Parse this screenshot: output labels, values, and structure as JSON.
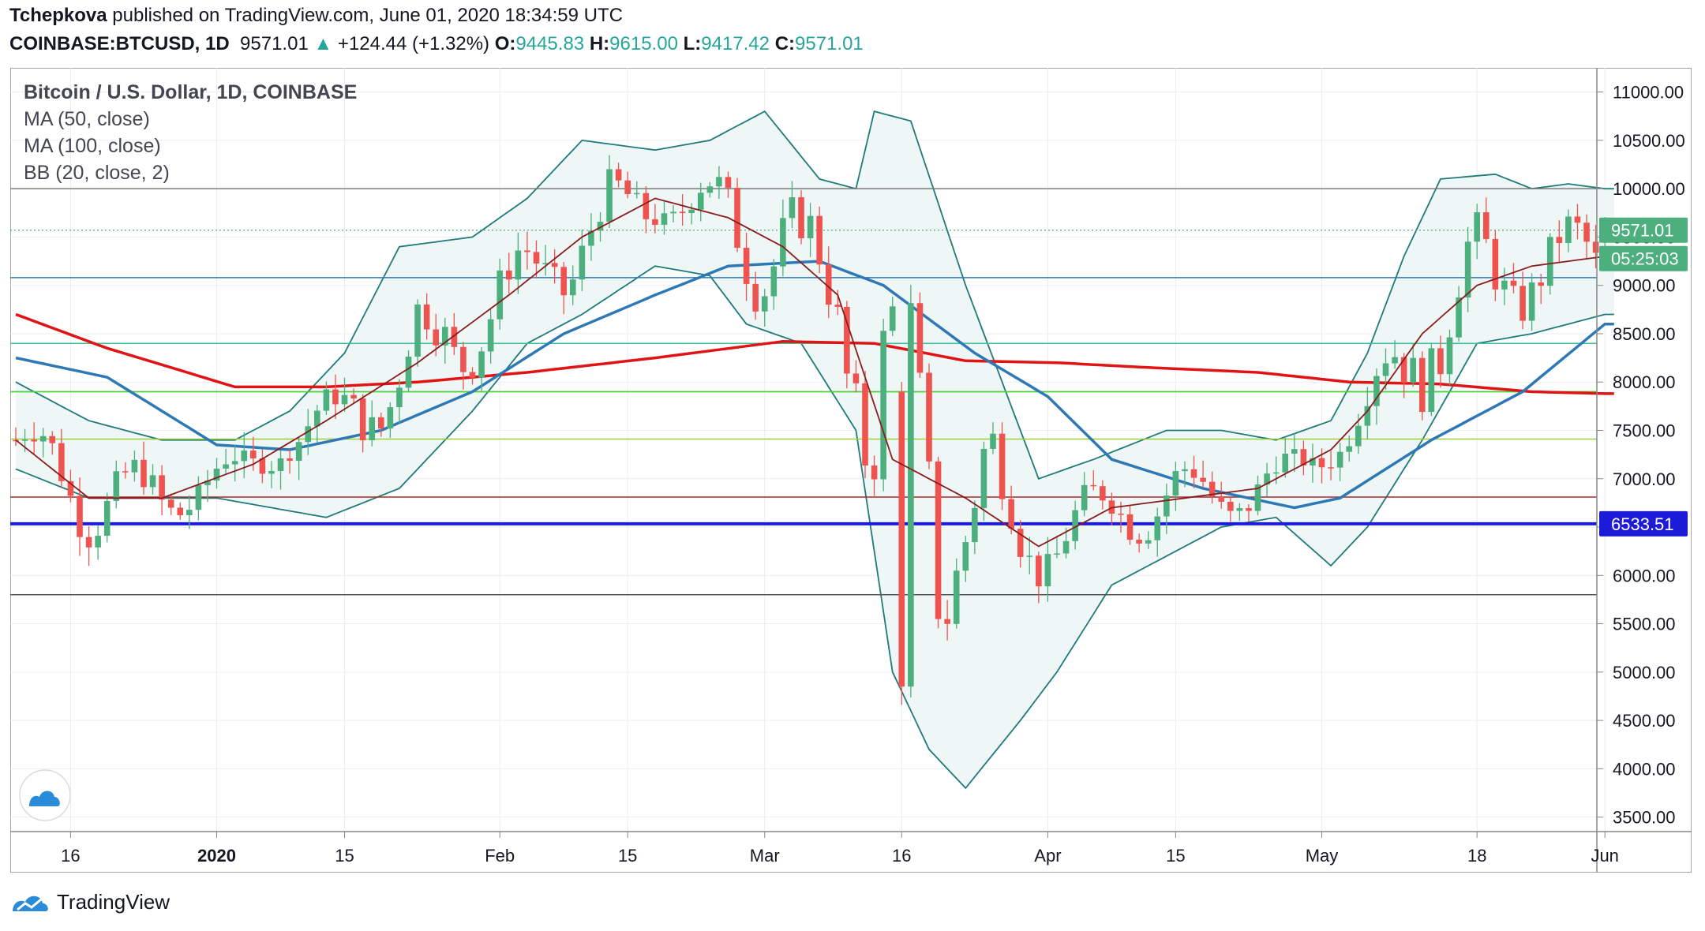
{
  "header": {
    "author": "Tchepkova",
    "published": "published on TradingView.com, June 01, 2020 18:34:59 UTC",
    "symbol": "COINBASE:BTCUSD, 1D",
    "last": "9571.01",
    "arrow": "▲",
    "change": "+124.44 (+1.32%)",
    "o_label": "O:",
    "o_value": "9445.83",
    "h_label": "H:",
    "h_value": "9615.00",
    "l_label": "L:",
    "l_value": "9417.42",
    "c_label": "C:",
    "c_value": "9571.01"
  },
  "legend": {
    "title": "Bitcoin / U.S. Dollar, 1D, COINBASE",
    "ma50": "MA (50, close)",
    "ma100": "MA (100, close)",
    "bb": "BB (20, close, 2)"
  },
  "footer": {
    "brand": "TradingView"
  },
  "colors": {
    "up": "#4caf7d",
    "down": "#ef5350",
    "ma50": "#2e79b5",
    "ma100": "#e01414",
    "bb_mid": "#8b1c1c",
    "bb_band": "#1f7a7a",
    "bb_fill": "#eef6f6",
    "blue_line": "#1c1cd8",
    "price_badge": "#4caf7d",
    "support_badge": "#1c1cd8"
  },
  "chart_data": {
    "type": "candlestick",
    "title": "Bitcoin / U.S. Dollar, 1D, COINBASE",
    "ylim": [
      3350,
      11250
    ],
    "y_ticks": [
      "11000.00",
      "10500.00",
      "10000.00",
      "9500.00",
      "9000.00",
      "8500.00",
      "8000.00",
      "7500.00",
      "7000.00",
      "6500.00",
      "6000.00",
      "5500.00",
      "5000.00",
      "4500.00",
      "4000.00",
      "3500.00"
    ],
    "x_ticks": [
      {
        "label": "16",
        "day": 6
      },
      {
        "label": "2020",
        "day": 22
      },
      {
        "label": "15",
        "day": 36
      },
      {
        "label": "Feb",
        "day": 53
      },
      {
        "label": "15",
        "day": 67
      },
      {
        "label": "Mar",
        "day": 82
      },
      {
        "label": "16",
        "day": 97
      },
      {
        "label": "Apr",
        "day": 113
      },
      {
        "label": "15",
        "day": 127
      },
      {
        "label": "May",
        "day": 143
      },
      {
        "label": "18",
        "day": 160
      },
      {
        "label": "Jun",
        "day": 174
      }
    ],
    "last_price_label": "9571.01",
    "countdown_label": "05:25:03",
    "support_label": "6533.51",
    "horizontal_levels": [
      {
        "value": 10000,
        "color": "#7a7a7a",
        "width": 1.5
      },
      {
        "value": 9080,
        "color": "#2e79b5",
        "width": 1.5
      },
      {
        "value": 8400,
        "color": "#3bbf9a",
        "width": 1.5
      },
      {
        "value": 7900,
        "color": "#4ccf3a",
        "width": 1.8
      },
      {
        "value": 7410,
        "color": "#9ad03a",
        "width": 1.5
      },
      {
        "value": 6810,
        "color": "#a52a2a",
        "width": 1.5
      },
      {
        "value": 6533.51,
        "color": "#1c1cd8",
        "width": 4
      },
      {
        "value": 5800,
        "color": "#555555",
        "width": 1.5
      }
    ],
    "key_points": {
      "ma50": [
        [
          0,
          8250
        ],
        [
          10,
          8050
        ],
        [
          22,
          7350
        ],
        [
          30,
          7300
        ],
        [
          40,
          7500
        ],
        [
          50,
          7900
        ],
        [
          60,
          8500
        ],
        [
          70,
          8900
        ],
        [
          78,
          9200
        ],
        [
          88,
          9250
        ],
        [
          95,
          9000
        ],
        [
          105,
          8300
        ],
        [
          113,
          7850
        ],
        [
          120,
          7200
        ],
        [
          130,
          6900
        ],
        [
          140,
          6700
        ],
        [
          145,
          6800
        ],
        [
          155,
          7400
        ],
        [
          165,
          7900
        ],
        [
          174,
          8600
        ]
      ],
      "ma100": [
        [
          0,
          8700
        ],
        [
          10,
          8350
        ],
        [
          24,
          7950
        ],
        [
          34,
          7950
        ],
        [
          44,
          8000
        ],
        [
          56,
          8100
        ],
        [
          70,
          8250
        ],
        [
          84,
          8420
        ],
        [
          94,
          8400
        ],
        [
          104,
          8220
        ],
        [
          114,
          8200
        ],
        [
          124,
          8150
        ],
        [
          136,
          8100
        ],
        [
          146,
          8000
        ],
        [
          156,
          7980
        ],
        [
          166,
          7900
        ],
        [
          174,
          7880
        ]
      ],
      "bb_mid": [
        [
          0,
          7400
        ],
        [
          8,
          6800
        ],
        [
          16,
          6800
        ],
        [
          26,
          7150
        ],
        [
          34,
          7600
        ],
        [
          44,
          8200
        ],
        [
          54,
          8900
        ],
        [
          62,
          9500
        ],
        [
          70,
          9900
        ],
        [
          78,
          9700
        ],
        [
          84,
          9400
        ],
        [
          90,
          8900
        ],
        [
          96,
          7200
        ],
        [
          104,
          6800
        ],
        [
          112,
          6300
        ],
        [
          120,
          6700
        ],
        [
          128,
          6800
        ],
        [
          136,
          6900
        ],
        [
          144,
          7300
        ],
        [
          148,
          7700
        ],
        [
          154,
          8500
        ],
        [
          160,
          9000
        ],
        [
          166,
          9200
        ],
        [
          174,
          9300
        ]
      ],
      "bb_upper": [
        [
          0,
          8000
        ],
        [
          8,
          7600
        ],
        [
          16,
          7400
        ],
        [
          24,
          7400
        ],
        [
          30,
          7700
        ],
        [
          36,
          8300
        ],
        [
          42,
          9400
        ],
        [
          50,
          9500
        ],
        [
          56,
          9900
        ],
        [
          62,
          10500
        ],
        [
          70,
          10400
        ],
        [
          76,
          10500
        ],
        [
          82,
          10800
        ],
        [
          88,
          10100
        ],
        [
          92,
          10000
        ],
        [
          94,
          10800
        ],
        [
          98,
          10700
        ],
        [
          104,
          9000
        ],
        [
          112,
          7000
        ],
        [
          118,
          7200
        ],
        [
          126,
          7500
        ],
        [
          132,
          7500
        ],
        [
          138,
          7400
        ],
        [
          144,
          7600
        ],
        [
          148,
          8300
        ],
        [
          152,
          9300
        ],
        [
          156,
          10100
        ],
        [
          162,
          10150
        ],
        [
          166,
          10000
        ],
        [
          170,
          10050
        ],
        [
          174,
          10000
        ]
      ],
      "bb_lower": [
        [
          0,
          7100
        ],
        [
          8,
          6800
        ],
        [
          16,
          6800
        ],
        [
          22,
          6800
        ],
        [
          28,
          6700
        ],
        [
          34,
          6600
        ],
        [
          42,
          6900
        ],
        [
          50,
          7700
        ],
        [
          56,
          8400
        ],
        [
          62,
          8700
        ],
        [
          70,
          9200
        ],
        [
          76,
          9100
        ],
        [
          80,
          8600
        ],
        [
          86,
          8400
        ],
        [
          92,
          7500
        ],
        [
          96,
          5000
        ],
        [
          100,
          4200
        ],
        [
          104,
          3800
        ],
        [
          110,
          4500
        ],
        [
          114,
          5000
        ],
        [
          120,
          5900
        ],
        [
          126,
          6200
        ],
        [
          132,
          6500
        ],
        [
          138,
          6600
        ],
        [
          144,
          6100
        ],
        [
          148,
          6500
        ],
        [
          154,
          7400
        ],
        [
          160,
          8400
        ],
        [
          166,
          8500
        ],
        [
          174,
          8700
        ]
      ]
    }
  }
}
